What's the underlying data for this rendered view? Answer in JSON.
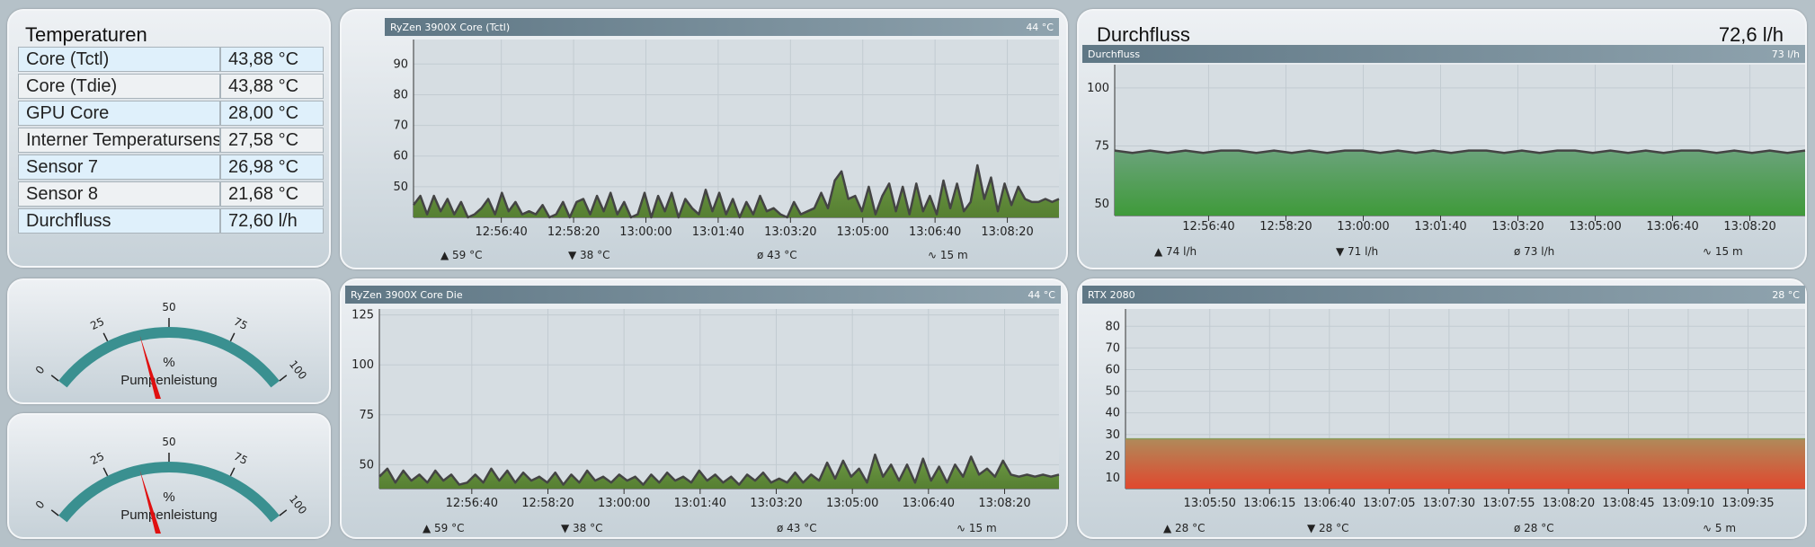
{
  "temperatures": {
    "title": "Temperaturen",
    "rows": [
      {
        "name": "Core (Tctl)",
        "value": "43,88 °C"
      },
      {
        "name": "Core (Tdie)",
        "value": "43,88 °C"
      },
      {
        "name": "GPU Core",
        "value": "28,00 °C"
      },
      {
        "name": "Interner Temperatursensor",
        "value": "27,58 °C"
      },
      {
        "name": "Sensor 7",
        "value": "26,98 °C"
      },
      {
        "name": "Sensor 8",
        "value": "21,68 °C"
      },
      {
        "name": "Durchfluss",
        "value": "72,60 l/h"
      }
    ]
  },
  "flow_panel": {
    "title": "Durchfluss",
    "value": "72,6 l/h"
  },
  "gauges": [
    {
      "label": "Pumpenleistung",
      "unit": "%",
      "min": 0,
      "max": 100,
      "ticks": [
        "0",
        "25",
        "50",
        "75",
        "100"
      ],
      "value": 38
    },
    {
      "label": "Pumpenleistung",
      "unit": "%",
      "min": 0,
      "max": 100,
      "ticks": [
        "0",
        "25",
        "50",
        "75",
        "100"
      ],
      "value": 38
    }
  ],
  "colors": {
    "green_line": "#444444",
    "green_fill": "#5d8a3a",
    "gauge_arc": "#3a9090",
    "needle": "#e01010",
    "header": "#6c8492"
  },
  "chart_data": [
    {
      "type": "area",
      "title": "RyZen 3900X Core (Tctl)",
      "current": "44 °C",
      "ylim": [
        40,
        98
      ],
      "yticks": [
        50,
        60,
        70,
        80,
        90
      ],
      "xticks": [
        "12:56:40",
        "12:58:20",
        "13:00:00",
        "13:01:40",
        "13:03:20",
        "13:05:00",
        "13:06:40",
        "13:08:20"
      ],
      "values": [
        44,
        47,
        41,
        47,
        42,
        46,
        41,
        45,
        40,
        41,
        43,
        46,
        41,
        48,
        42,
        45,
        41,
        42,
        41,
        44,
        40,
        41,
        45,
        40,
        45,
        46,
        41,
        47,
        42,
        48,
        41,
        45,
        40,
        41,
        48,
        40,
        47,
        42,
        48,
        40,
        46,
        43,
        41,
        49,
        42,
        48,
        41,
        46,
        40,
        45,
        41,
        47,
        42,
        43,
        41,
        40,
        45,
        41,
        42,
        43,
        48,
        43,
        52,
        55,
        46,
        47,
        42,
        50,
        41,
        47,
        51,
        42,
        50,
        41,
        51,
        42,
        47,
        41,
        52,
        43,
        51,
        42,
        45,
        57,
        46,
        53,
        42,
        51,
        44,
        50,
        46,
        45,
        45,
        46,
        45,
        46
      ],
      "stats": {
        "max": "59 °C",
        "min": "38 °C",
        "avg": "43 °C",
        "span": "15 m"
      }
    },
    {
      "type": "area",
      "title": "RyZen 3900X Core Die",
      "current": "44 °C",
      "ylim": [
        38,
        128
      ],
      "yticks": [
        50,
        75,
        100,
        125
      ],
      "xticks": [
        "12:56:40",
        "12:58:20",
        "13:00:00",
        "13:01:40",
        "13:03:20",
        "13:05:00",
        "13:06:40",
        "13:08:20"
      ],
      "values": [
        44,
        48,
        41,
        47,
        42,
        45,
        41,
        47,
        42,
        45,
        40,
        41,
        45,
        41,
        48,
        42,
        47,
        41,
        46,
        42,
        44,
        41,
        46,
        40,
        45,
        41,
        47,
        42,
        44,
        41,
        45,
        42,
        44,
        40,
        45,
        41,
        46,
        42,
        44,
        41,
        47,
        42,
        45,
        41,
        44,
        40,
        45,
        42,
        46,
        41,
        43,
        41,
        46,
        41,
        45,
        42,
        51,
        43,
        52,
        44,
        48,
        41,
        55,
        44,
        50,
        42,
        50,
        41,
        53,
        42,
        49,
        41,
        50,
        44,
        54,
        45,
        48,
        44,
        52,
        45,
        44,
        45,
        44,
        45,
        44,
        45
      ],
      "stats": {
        "max": "59 °C",
        "min": "38 °C",
        "avg": "43 °C",
        "span": "15 m"
      }
    },
    {
      "type": "area",
      "title": "Durchfluss",
      "current": "73 l/h",
      "ylim": [
        45,
        110
      ],
      "yticks": [
        50,
        75,
        100
      ],
      "xticks": [
        "12:56:40",
        "12:58:20",
        "13:00:00",
        "13:01:40",
        "13:03:20",
        "13:05:00",
        "13:06:40",
        "13:08:20"
      ],
      "values": [
        73,
        72,
        73,
        72,
        73,
        72,
        73,
        73,
        72,
        73,
        72,
        73,
        72,
        73,
        73,
        72,
        73,
        72,
        73,
        72,
        73,
        73,
        72,
        73,
        72,
        73,
        73,
        72,
        73,
        72,
        73,
        72,
        73,
        73,
        72,
        73,
        72,
        73,
        72,
        73
      ],
      "stats": {
        "max": "74 l/h",
        "min": "71 l/h",
        "avg": "73 l/h",
        "span": "15 m"
      }
    },
    {
      "type": "area",
      "title": "RTX 2080",
      "current": "28 °C",
      "ylim": [
        5,
        88
      ],
      "yticks": [
        10,
        20,
        30,
        40,
        50,
        60,
        70,
        80
      ],
      "xticks": [
        "13:05:50",
        "13:06:15",
        "13:06:40",
        "13:07:05",
        "13:07:30",
        "13:07:55",
        "13:08:20",
        "13:08:45",
        "13:09:10",
        "13:09:35"
      ],
      "values": [
        28,
        28,
        28,
        28,
        28,
        28,
        28,
        28,
        28,
        28,
        28,
        28
      ],
      "stats": {
        "max": "28 °C",
        "min": "28 °C",
        "avg": "28 °C",
        "span": "5 m"
      }
    }
  ]
}
